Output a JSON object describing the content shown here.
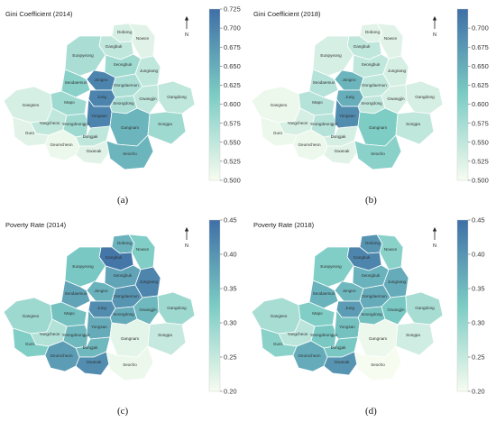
{
  "panels": [
    {
      "id": "a",
      "title": "Gini Coefficient (2014)",
      "caption": "(a)",
      "colorbar": {
        "min": 0.5,
        "max": 0.725,
        "ticks": [
          "0.725",
          "0.700",
          "0.675",
          "0.650",
          "0.625",
          "0.600",
          "0.575",
          "0.550",
          "0.525",
          "0.500"
        ]
      },
      "values": {
        "Dobong": 0.53,
        "Nowon": 0.52,
        "Gangbuk": 0.55,
        "Eunpyeong": 0.57,
        "Seongbuk": 0.58,
        "Jungnang": 0.55,
        "Jongno": 0.7,
        "Seodaemun": 0.6,
        "Dongdaemun": 0.57,
        "Gangseo": 0.53,
        "Mapo": 0.58,
        "Jung": 0.7,
        "Seongdong": 0.57,
        "Gwangjin": 0.55,
        "Gangdong": 0.55,
        "Yangcheon": 0.55,
        "Yeongdeungpo": 0.58,
        "Yongsan": 0.7,
        "Dongjak": 0.55,
        "Gangnam": 0.64,
        "Songpa": 0.58,
        "Guro": 0.52,
        "Gwanak": 0.52,
        "Seocho": 0.64,
        "Geumcheon": 0.51
      }
    },
    {
      "id": "b",
      "title": "Gini Coefficient (2018)",
      "caption": "(b)",
      "colorbar": {
        "min": 0.5,
        "max": 0.725,
        "ticks": [
          "0.700",
          "0.675",
          "0.650",
          "0.625",
          "0.600",
          "0.575",
          "0.550",
          "0.525",
          "0.500"
        ]
      },
      "values": {
        "Dobong": 0.52,
        "Nowon": 0.52,
        "Gangbuk": 0.55,
        "Eunpyeong": 0.53,
        "Seongbuk": 0.55,
        "Jungnang": 0.53,
        "Jongno": 0.64,
        "Seodaemun": 0.56,
        "Dongdaemun": 0.55,
        "Gangseo": 0.51,
        "Mapo": 0.56,
        "Jung": 0.65,
        "Seongdong": 0.55,
        "Gwangjin": 0.53,
        "Gangdong": 0.53,
        "Yangcheon": 0.53,
        "Yeongdeungpo": 0.56,
        "Yongsan": 0.69,
        "Dongjak": 0.53,
        "Gangnam": 0.61,
        "Songpa": 0.55,
        "Guro": 0.51,
        "Gwanak": 0.52,
        "Seocho": 0.6,
        "Geumcheon": 0.51
      }
    },
    {
      "id": "c",
      "title": "Poverty Rate (2014)",
      "caption": "(c)",
      "colorbar": {
        "min": 0.2,
        "max": 0.45,
        "ticks": [
          "0.45",
          "0.40",
          "0.35",
          "0.30",
          "0.25",
          "0.20"
        ]
      },
      "values": {
        "Dobong": 0.36,
        "Nowon": 0.32,
        "Gangbuk": 0.44,
        "Eunpyeong": 0.33,
        "Seongbuk": 0.38,
        "Jungnang": 0.42,
        "Jongno": 0.36,
        "Seodaemun": 0.38,
        "Dongdaemun": 0.4,
        "Gangseo": 0.29,
        "Mapo": 0.34,
        "Jung": 0.41,
        "Seongdong": 0.37,
        "Gwangjin": 0.35,
        "Gangdong": 0.29,
        "Yangcheon": 0.27,
        "Yeongdeungpo": 0.35,
        "Yongsan": 0.37,
        "Dongjak": 0.35,
        "Gangnam": 0.22,
        "Songpa": 0.25,
        "Guro": 0.32,
        "Gwanak": 0.41,
        "Seocho": 0.21,
        "Geumcheon": 0.39
      }
    },
    {
      "id": "d",
      "title": "Poverty Rate (2018)",
      "caption": "(d)",
      "colorbar": {
        "min": 0.2,
        "max": 0.45,
        "ticks": [
          "0.45",
          "0.40",
          "0.35",
          "0.30",
          "0.25",
          "0.20"
        ]
      },
      "values": {
        "Dobong": 0.4,
        "Nowon": 0.31,
        "Gangbuk": 0.42,
        "Eunpyeong": 0.32,
        "Seongbuk": 0.36,
        "Jungnang": 0.37,
        "Jongno": 0.35,
        "Seodaemun": 0.36,
        "Dongdaemun": 0.37,
        "Gangseo": 0.28,
        "Mapo": 0.32,
        "Jung": 0.39,
        "Seongdong": 0.34,
        "Gwangjin": 0.33,
        "Gangdong": 0.28,
        "Yangcheon": 0.26,
        "Yeongdeungpo": 0.33,
        "Yongsan": 0.34,
        "Dongjak": 0.33,
        "Gangnam": 0.21,
        "Songpa": 0.24,
        "Guro": 0.31,
        "Gwanak": 0.4,
        "Seocho": 0.2,
        "Geumcheon": 0.37
      }
    }
  ],
  "north_label": "N",
  "color_low": "#f7fcf0",
  "color_mid": "#7bccc4",
  "color_high": "#3f6fa6"
}
